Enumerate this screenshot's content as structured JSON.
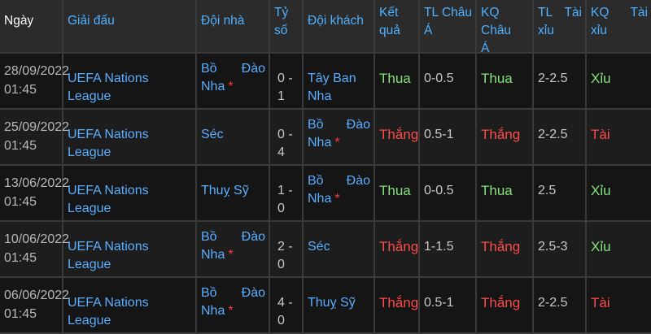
{
  "headers": {
    "date": "Ngày",
    "league": "Giải đấu",
    "home": "Đội nhà",
    "score_1": "Tỷ",
    "score_2": "số",
    "away": "Đội khách",
    "result_1": "Kết",
    "result_2": "quả",
    "asia_1": "TL",
    "asia_2": "Châu",
    "asia_3": "Á",
    "kq_asia_1": "KQ",
    "kq_asia_2": "Châu",
    "kq_asia_3": "Á",
    "ou_1": "TL",
    "ou_2": "Tài",
    "ou_3": "xỉu",
    "kq_ou_1": "KQ",
    "kq_ou_2": "Tài",
    "kq_ou_3": "xỉu"
  },
  "rows": [
    {
      "date": "28/09/2022",
      "time": "01:45",
      "league": "UEFA Nations League",
      "home_1": "Bồ",
      "home_2": "Đào",
      "home_3": "Nha",
      "home_star": "*",
      "score": "0 - 1",
      "away": "Tây Ban Nha",
      "result": "Thua",
      "asia": "0-0.5",
      "kq_asia": "Thua",
      "ou": "2-2.5",
      "kq_ou": "Xỉu"
    },
    {
      "date": "25/09/2022",
      "time": "01:45",
      "league": "UEFA Nations League",
      "home": "Séc",
      "score": "0 - 4",
      "away_1": "Bồ",
      "away_2": "Đào",
      "away_3": "Nha",
      "away_star": "*",
      "result": "Thắng",
      "asia": "0.5-1",
      "kq_asia": "Thắng",
      "ou": "2-2.5",
      "kq_ou": "Tài"
    },
    {
      "date": "13/06/2022",
      "time": "01:45",
      "league": "UEFA Nations League",
      "home": "Thuỵ Sỹ",
      "score": "1 - 0",
      "away_1": "Bồ",
      "away_2": "Đào",
      "away_3": "Nha",
      "away_star": "*",
      "result": "Thua",
      "asia": "0-0.5",
      "kq_asia": "Thua",
      "ou": "2.5",
      "kq_ou": "Xỉu"
    },
    {
      "date": "10/06/2022",
      "time": "01:45",
      "league": "UEFA Nations League",
      "home_1": "Bồ",
      "home_2": "Đào",
      "home_3": "Nha",
      "home_star": "*",
      "score": "2 - 0",
      "away": "Séc",
      "result": "Thắng",
      "asia": "1-1.5",
      "kq_asia": "Thắng",
      "ou": "2.5-3",
      "kq_ou": "Xỉu"
    },
    {
      "date": "06/06/2022",
      "time": "01:45",
      "league": "UEFA Nations League",
      "home_1": "Bồ",
      "home_2": "Đào",
      "home_3": "Nha",
      "home_star": "*",
      "score": "4 - 0",
      "away": "Thuỵ Sỹ",
      "result": "Thắng",
      "asia": "0.5-1",
      "kq_asia": "Thắng",
      "ou": "2-2.5",
      "kq_ou": "Tài"
    }
  ],
  "colors": {
    "link_blue": "#5aaeff",
    "win_red": "#ff4a4a",
    "lose_green": "#84e27d",
    "star_red": "#ff3a3a",
    "header_bg": "#2b2b2b"
  }
}
